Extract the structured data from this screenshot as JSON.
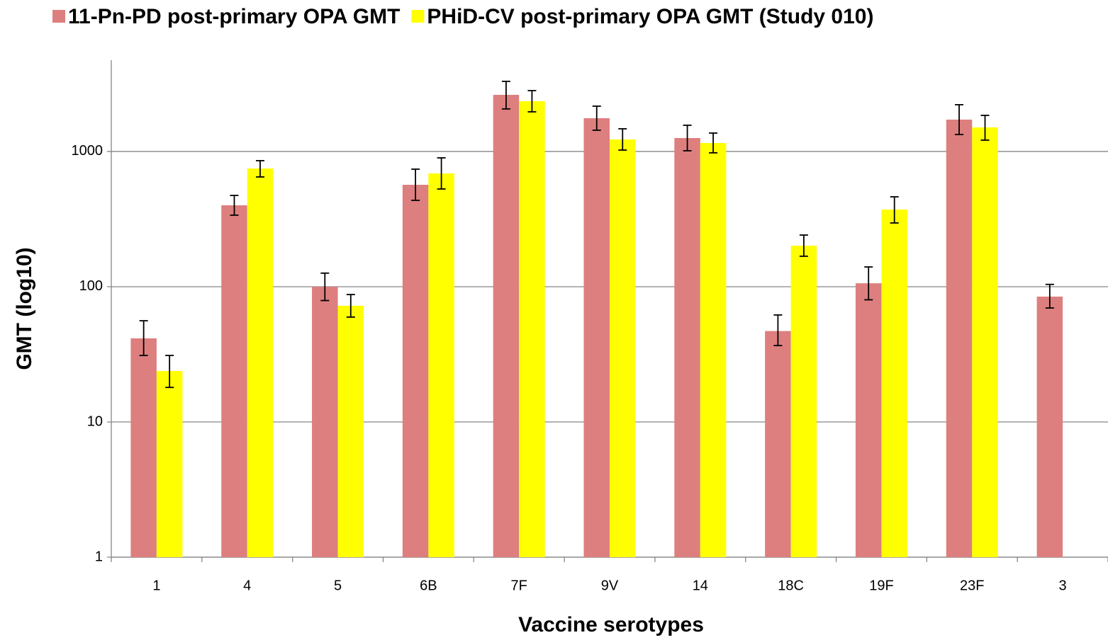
{
  "chart_data": {
    "type": "bar",
    "x_label": "Vaccine serotypes",
    "y_label": "GMT (log10)",
    "categories": [
      "1",
      "4",
      "5",
      "6B",
      "7F",
      "9V",
      "14",
      "18C",
      "19F",
      "23F",
      "3"
    ],
    "series": [
      {
        "name": "11-Pn-PD post-primary OPA GMT",
        "color": "#dd7f7e",
        "values": [
          41.5,
          400,
          100,
          567,
          2622,
          1762,
          1257,
          47,
          106,
          1720,
          84.5
        ],
        "ci_low": [
          31,
          338,
          79,
          435,
          2063,
          1436,
          1012,
          36.7,
          80,
          1335,
          69.6
        ],
        "ci_high": [
          56,
          473,
          126,
          740,
          3300,
          2163,
          1563,
          61.8,
          140,
          2217,
          104
        ]
      },
      {
        "name": "PHiD-CV post-primary OPA GMT (Study 010)",
        "color": "#ffff00",
        "values": [
          23.8,
          748,
          72.3,
          688,
          2353,
          1227,
          1155,
          201,
          372,
          1507,
          null
        ],
        "ci_low": [
          18,
          648,
          59.6,
          528,
          1964,
          1024,
          977,
          168,
          296,
          1213,
          null
        ],
        "ci_high": [
          31,
          855,
          87.5,
          897,
          2819,
          1471,
          1368,
          241,
          462,
          1849,
          null
        ]
      }
    ],
    "y_log": true,
    "ylim": [
      1,
      4732
    ],
    "yticks": [
      1,
      10,
      100,
      1000
    ],
    "grid": true,
    "legend": "top"
  }
}
